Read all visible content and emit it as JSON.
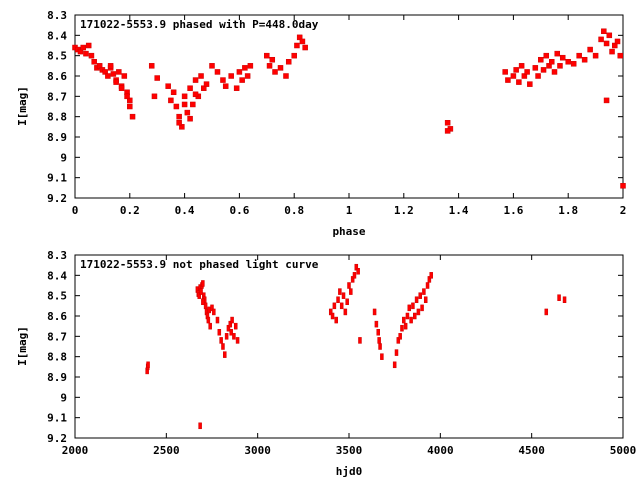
{
  "chart_data": [
    {
      "type": "scatter",
      "title": "171022-5553.9 phased with P=448.0day",
      "xlabel": "phase",
      "ylabel": "I[mag]",
      "xlim": [
        0,
        2
      ],
      "ylim": [
        9.2,
        8.3
      ],
      "y_inverted": true,
      "xticks": [
        "0",
        "0.2",
        "0.4",
        "0.6",
        "0.8",
        "1",
        "1.2",
        "1.4",
        "1.6",
        "1.8",
        "2"
      ],
      "yticks": [
        "8.3",
        "8.4",
        "8.5",
        "8.6",
        "8.7",
        "8.8",
        "8.9",
        "9",
        "9.1",
        "9.2"
      ],
      "color": "#ff0000",
      "series": [
        {
          "x": [
            0.0,
            0.01,
            0.02,
            0.03,
            0.04,
            0.05,
            0.06,
            0.07,
            0.08,
            0.09,
            0.1,
            0.11,
            0.12,
            0.13,
            0.14,
            0.15,
            0.16,
            0.17,
            0.18,
            0.19,
            0.2,
            0.21,
            0.13,
            0.15,
            0.17,
            0.19,
            0.2,
            0.28,
            0.29,
            0.3,
            0.34,
            0.35,
            0.36,
            0.37,
            0.38,
            0.39,
            0.4,
            0.41,
            0.42,
            0.43,
            0.44,
            0.45,
            0.46,
            0.47,
            0.48,
            0.38,
            0.4,
            0.42,
            0.44,
            0.5,
            0.52,
            0.54,
            0.55,
            0.57,
            0.59,
            0.6,
            0.61,
            0.62,
            0.63,
            0.64,
            0.7,
            0.71,
            0.72,
            0.73,
            0.75,
            0.77,
            0.78,
            0.8,
            0.81,
            0.82,
            0.83,
            0.84,
            1.36,
            1.37,
            1.36,
            1.57,
            1.58,
            1.6,
            1.61,
            1.62,
            1.63,
            1.64,
            1.65,
            1.66,
            1.68,
            1.69,
            1.7,
            1.71,
            1.72,
            1.73,
            1.74,
            1.75,
            1.76,
            1.77,
            1.78,
            1.8,
            1.82,
            1.84,
            1.86,
            1.88,
            1.9,
            1.92,
            1.93,
            1.94,
            1.95,
            1.96,
            1.97,
            1.98,
            1.99,
            1.94,
            2.0
          ],
          "y": [
            8.46,
            8.47,
            8.48,
            8.46,
            8.49,
            8.45,
            8.5,
            8.53,
            8.56,
            8.55,
            8.57,
            8.58,
            8.6,
            8.56,
            8.59,
            8.62,
            8.58,
            8.65,
            8.6,
            8.68,
            8.72,
            8.8,
            8.55,
            8.63,
            8.66,
            8.7,
            8.75,
            8.55,
            8.7,
            8.61,
            8.65,
            8.72,
            8.68,
            8.75,
            8.8,
            8.85,
            8.7,
            8.78,
            8.66,
            8.74,
            8.62,
            8.7,
            8.6,
            8.66,
            8.64,
            8.83,
            8.74,
            8.81,
            8.69,
            8.55,
            8.58,
            8.62,
            8.65,
            8.6,
            8.66,
            8.58,
            8.62,
            8.56,
            8.6,
            8.55,
            8.5,
            8.55,
            8.52,
            8.58,
            8.56,
            8.6,
            8.53,
            8.5,
            8.45,
            8.41,
            8.43,
            8.46,
            8.83,
            8.86,
            8.87,
            8.58,
            8.62,
            8.6,
            8.57,
            8.63,
            8.55,
            8.6,
            8.58,
            8.64,
            8.56,
            8.6,
            8.52,
            8.57,
            8.5,
            8.55,
            8.53,
            8.58,
            8.49,
            8.55,
            8.51,
            8.53,
            8.54,
            8.5,
            8.52,
            8.47,
            8.5,
            8.42,
            8.38,
            8.44,
            8.4,
            8.48,
            8.45,
            8.43,
            8.5,
            8.72,
            9.14
          ]
        }
      ]
    },
    {
      "type": "scatter",
      "title": "171022-5553.9 not phased light curve",
      "xlabel": "hjd0",
      "ylabel": "I[mag]",
      "xlim": [
        2000,
        5000
      ],
      "ylim": [
        9.2,
        8.3
      ],
      "y_inverted": true,
      "xticks": [
        "2000",
        "2500",
        "3000",
        "3500",
        "4000",
        "4500",
        "5000"
      ],
      "yticks": [
        "8.3",
        "8.4",
        "8.5",
        "8.6",
        "8.7",
        "8.8",
        "8.9",
        "9",
        "9.1",
        "9.2"
      ],
      "color": "#ff0000",
      "series": [
        {
          "x": [
            2395,
            2398,
            2400,
            2670,
            2675,
            2680,
            2685,
            2690,
            2695,
            2700,
            2705,
            2710,
            2715,
            2720,
            2725,
            2730,
            2735,
            2740,
            2750,
            2760,
            2780,
            2790,
            2800,
            2810,
            2820,
            2830,
            2840,
            2850,
            2855,
            2860,
            2870,
            2880,
            2890,
            2685,
            2700,
            3400,
            3410,
            3420,
            3430,
            3440,
            3450,
            3460,
            3470,
            3480,
            3490,
            3500,
            3510,
            3520,
            3530,
            3540,
            3550,
            3560,
            3640,
            3650,
            3660,
            3665,
            3670,
            3680,
            3750,
            3760,
            3770,
            3780,
            3790,
            3800,
            3810,
            3820,
            3830,
            3840,
            3850,
            3860,
            3870,
            3880,
            3890,
            3900,
            3910,
            3920,
            3930,
            3940,
            3950,
            4580,
            4650,
            4680
          ],
          "y": [
            8.87,
            8.85,
            8.84,
            8.47,
            8.49,
            8.5,
            8.46,
            8.48,
            8.45,
            8.44,
            8.5,
            8.52,
            8.55,
            8.58,
            8.6,
            8.62,
            8.57,
            8.65,
            8.56,
            8.58,
            8.62,
            8.68,
            8.72,
            8.75,
            8.79,
            8.7,
            8.66,
            8.64,
            8.68,
            8.62,
            8.7,
            8.65,
            8.72,
            9.14,
            8.53,
            8.58,
            8.6,
            8.55,
            8.62,
            8.52,
            8.48,
            8.55,
            8.5,
            8.58,
            8.53,
            8.45,
            8.48,
            8.42,
            8.4,
            8.36,
            8.38,
            8.72,
            8.58,
            8.64,
            8.68,
            8.72,
            8.75,
            8.8,
            8.84,
            8.78,
            8.72,
            8.7,
            8.66,
            8.62,
            8.65,
            8.6,
            8.56,
            8.62,
            8.55,
            8.6,
            8.52,
            8.58,
            8.5,
            8.56,
            8.48,
            8.52,
            8.45,
            8.42,
            8.4,
            8.58,
            8.51,
            8.52
          ]
        }
      ]
    }
  ]
}
